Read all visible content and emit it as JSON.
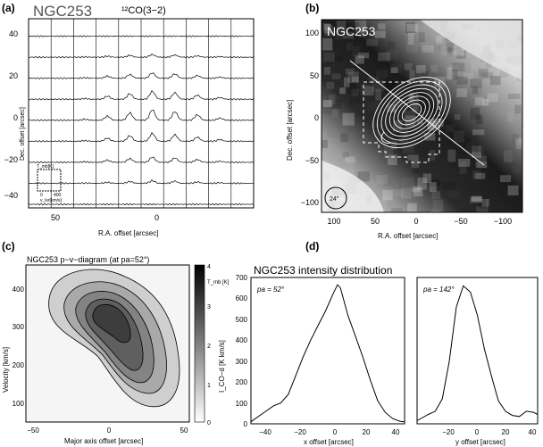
{
  "panels": {
    "a": {
      "letter": "(a)",
      "object": "NGC253",
      "line": "¹²CO(3−2)",
      "ylabel": "Dec. offset [arcsec]",
      "xlabel": "R.A. offset [arcsec]",
      "yticks": [
        "40",
        "20",
        "0",
        "−20",
        "−40"
      ],
      "xticks": [
        "50",
        "0"
      ],
      "inset_y": "T_mb[K]",
      "inset_x": "v_lsr[km/s]",
      "inset_ticks": [
        "0",
        "400"
      ]
    },
    "b": {
      "letter": "(b)",
      "object": "NGC253",
      "ylabel": "Dec. offset [arcsec]",
      "xlabel": "R.A. offset [arcsec]",
      "yticks": [
        "100",
        "50",
        "0",
        "−50",
        "−100"
      ],
      "xticks": [
        "100",
        "50",
        "0",
        "−50",
        "−100"
      ],
      "beam": "24″"
    },
    "c": {
      "letter": "(c)",
      "title": "NGC253   p−v−diagram (at pa=52°)",
      "ylabel": "Velocity [km/s]",
      "xlabel": "Major axis offset [arcsec]",
      "yticks": [
        "400",
        "300",
        "200",
        "100"
      ],
      "xticks": [
        "−50",
        "0",
        "50"
      ],
      "cbar_label": "T_mb [K]",
      "cbar_ticks": [
        "4",
        "3",
        "2",
        "1",
        "0"
      ]
    },
    "d": {
      "letter": "(d)",
      "title": "NGC253  intensity distribution",
      "ylabel": "I_CO−d [K km/s]",
      "left_label": "pa = 52°",
      "right_label": "pa = 142°",
      "left_xlabel": "x offset [arcsec]",
      "right_xlabel": "y offset [arcsec]",
      "yticks": [
        "700",
        "600",
        "500",
        "400",
        "300",
        "200",
        "100",
        "0"
      ],
      "left_xticks": [
        "−40",
        "−20",
        "0",
        "20",
        "40"
      ],
      "right_xticks": [
        "−20",
        "0",
        "20",
        "40"
      ]
    }
  },
  "chart_data": [
    {
      "type": "line",
      "title": "NGC253 intensity distribution (pa = 52°)",
      "xlabel": "x offset [arcsec]",
      "ylabel": "I_CO-d [K km/s]",
      "xlim": [
        -55,
        48
      ],
      "ylim": [
        0,
        700
      ],
      "x": [
        -55,
        -45,
        -40,
        -35,
        -30,
        -25,
        -20,
        -15,
        -10,
        -5,
        0,
        3,
        5,
        10,
        15,
        20,
        25,
        30,
        35,
        40,
        45,
        48
      ],
      "values": [
        10,
        60,
        85,
        100,
        140,
        230,
        320,
        400,
        470,
        540,
        620,
        665,
        650,
        520,
        420,
        320,
        210,
        110,
        55,
        25,
        12,
        10
      ]
    },
    {
      "type": "line",
      "title": "NGC253 intensity distribution (pa = 142°)",
      "xlabel": "y offset [arcsec]",
      "ylabel": "I_CO-d [K km/s]",
      "xlim": [
        -38,
        48
      ],
      "ylim": [
        0,
        700
      ],
      "x": [
        -38,
        -30,
        -25,
        -20,
        -15,
        -10,
        -5,
        0,
        5,
        10,
        15,
        20,
        25,
        30,
        35,
        40,
        45,
        48
      ],
      "values": [
        15,
        45,
        60,
        120,
        300,
        560,
        660,
        630,
        520,
        360,
        230,
        110,
        60,
        40,
        35,
        60,
        55,
        45
      ]
    }
  ]
}
